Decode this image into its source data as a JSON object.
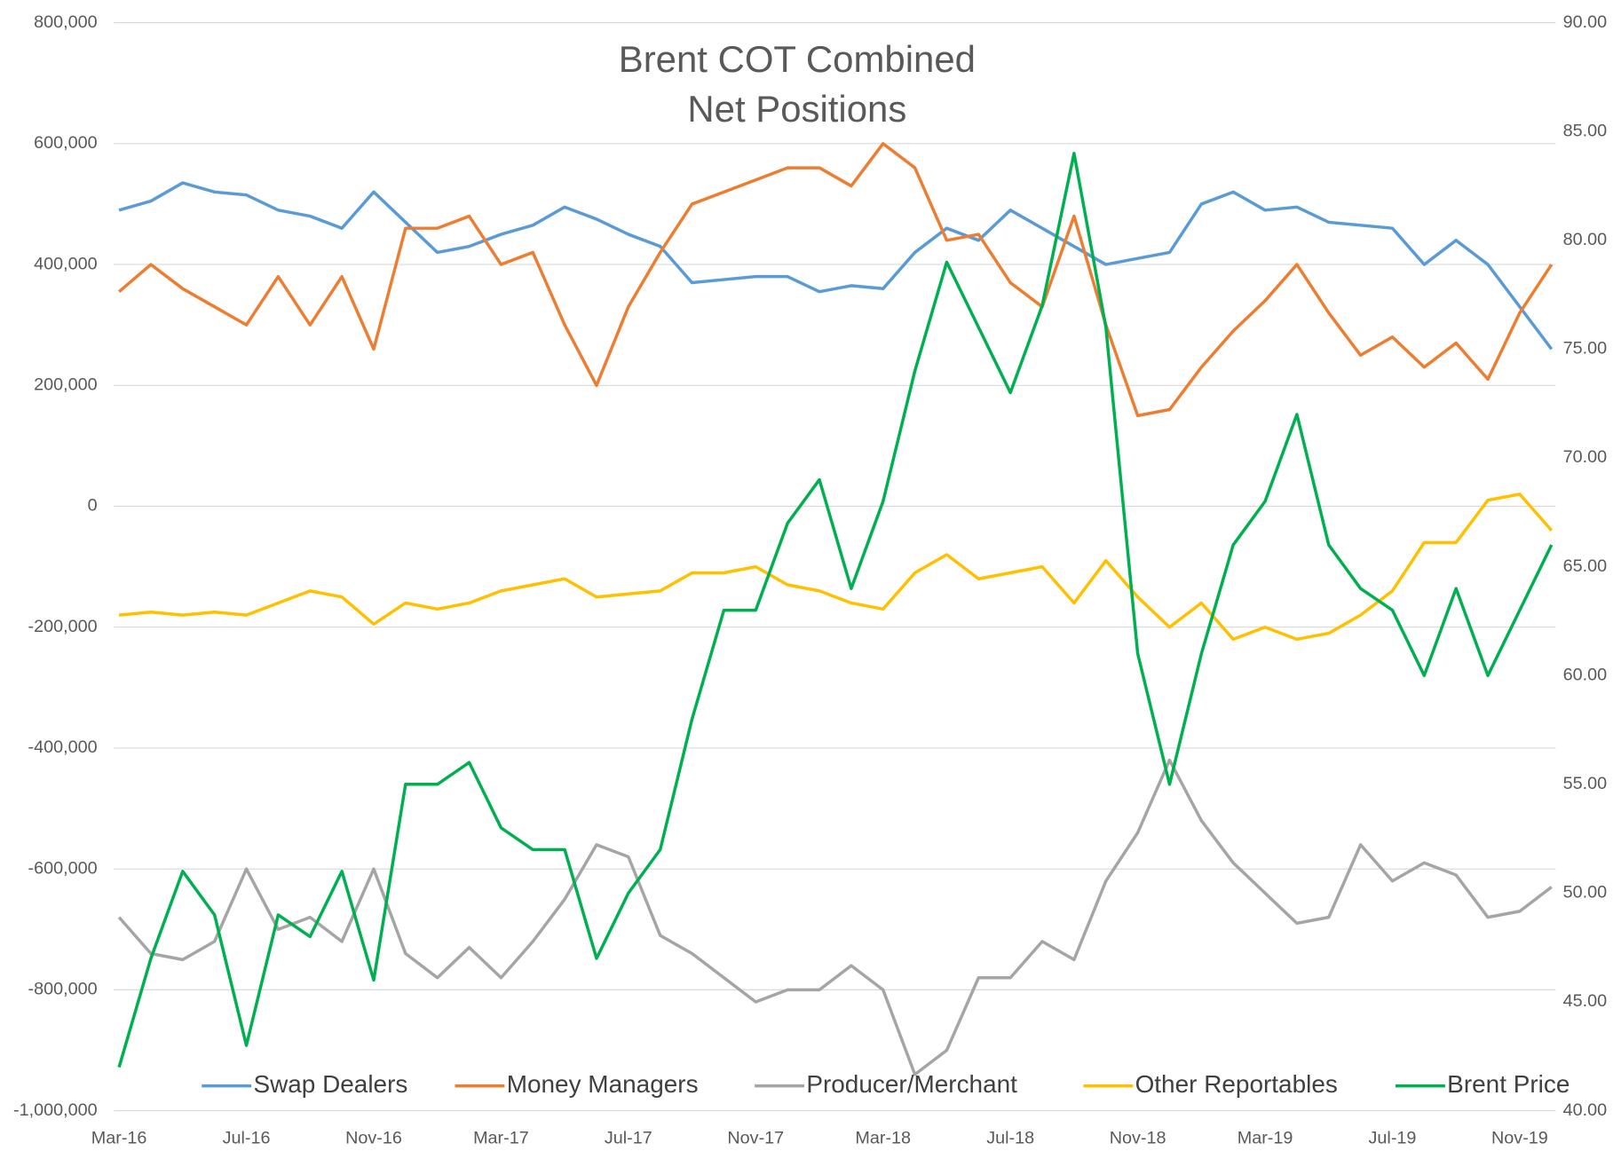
{
  "chart_data": {
    "type": "line",
    "title": [
      "Brent COT Combined",
      "Net Positions"
    ],
    "categories": [
      "Mar-16",
      null,
      null,
      null,
      "Jul-16",
      null,
      null,
      null,
      "Nov-16",
      null,
      null,
      null,
      "Mar-17",
      null,
      null,
      null,
      "Jul-17",
      null,
      null,
      null,
      "Nov-17",
      null,
      null,
      null,
      "Mar-18",
      null,
      null,
      null,
      "Jul-18",
      null,
      null,
      null,
      "Nov-18",
      null,
      null,
      null,
      "Mar-19",
      null,
      null,
      null,
      "Jul-19",
      null,
      null,
      null,
      "Nov-19",
      null
    ],
    "ylim": [
      -1000000,
      800000
    ],
    "yticks": [
      {
        "value": -1000000,
        "label": "-1,000,000"
      },
      {
        "value": -800000,
        "label": "-800,000"
      },
      {
        "value": -600000,
        "label": "-600,000"
      },
      {
        "value": -400000,
        "label": "-400,000"
      },
      {
        "value": -200000,
        "label": "-200,000"
      },
      0,
      {
        "value": 200000,
        "label": "200,000"
      },
      {
        "value": 400000,
        "label": "400,000"
      },
      {
        "value": 600000,
        "label": "600,000"
      },
      {
        "value": 800000,
        "label": "800,000"
      }
    ],
    "y2lim": [
      40,
      90
    ],
    "y2ticks": [
      {
        "value": 40,
        "label": "40.00"
      },
      {
        "value": 45,
        "label": "45.00"
      },
      {
        "value": 50,
        "label": "50.00"
      },
      {
        "value": 55,
        "label": "55.00"
      },
      {
        "value": 60,
        "label": "60.00"
      },
      {
        "value": 65,
        "label": "65.00"
      },
      {
        "value": 70,
        "label": "70.00"
      },
      {
        "value": 75,
        "label": "75.00"
      },
      {
        "value": 80,
        "label": "80.00"
      },
      {
        "value": 85,
        "label": "85.00"
      },
      {
        "value": 90,
        "label": "90.00"
      }
    ],
    "grid": true,
    "legend": "bottom",
    "series": [
      {
        "name": "Swap Dealers",
        "color": "#5b9bd5",
        "values": [
          490000,
          505000,
          535000,
          520000,
          515000,
          490000,
          480000,
          460000,
          520000,
          470000,
          420000,
          430000,
          450000,
          465000,
          495000,
          475000,
          450000,
          430000,
          370000,
          375000,
          380000,
          380000,
          355000,
          365000,
          360000,
          420000,
          460000,
          440000,
          490000,
          460000,
          430000,
          400000,
          410000,
          420000,
          500000,
          520000,
          490000,
          495000,
          470000,
          465000,
          460000,
          400000,
          440000,
          400000,
          330000,
          260000
        ]
      },
      {
        "name": "Money Managers",
        "color": "#ed7d31",
        "values": [
          355000,
          400000,
          360000,
          330000,
          300000,
          380000,
          300000,
          380000,
          260000,
          460000,
          460000,
          480000,
          400000,
          420000,
          300000,
          200000,
          330000,
          420000,
          500000,
          520000,
          540000,
          560000,
          560000,
          530000,
          600000,
          560000,
          440000,
          450000,
          370000,
          330000,
          480000,
          300000,
          150000,
          160000,
          230000,
          290000,
          340000,
          400000,
          320000,
          250000,
          280000,
          230000,
          270000,
          210000,
          320000,
          400000
        ]
      },
      {
        "name": "Producer/Merchant",
        "color": "#a5a5a5",
        "values": [
          -680000,
          -740000,
          -750000,
          -720000,
          -600000,
          -700000,
          -680000,
          -720000,
          -600000,
          -740000,
          -780000,
          -730000,
          -780000,
          -720000,
          -650000,
          -560000,
          -580000,
          -710000,
          -740000,
          -780000,
          -820000,
          -800000,
          -800000,
          -760000,
          -800000,
          -940000,
          -900000,
          -780000,
          -780000,
          -720000,
          -750000,
          -620000,
          -540000,
          -420000,
          -520000,
          -590000,
          -640000,
          -690000,
          -680000,
          -560000,
          -620000,
          -590000,
          -610000,
          -680000,
          -670000,
          -630000
        ]
      },
      {
        "name": "Other Reportables",
        "color": "#ffc000",
        "values": [
          -180000,
          -175000,
          -180000,
          -175000,
          -180000,
          -160000,
          -140000,
          -150000,
          -195000,
          -160000,
          -170000,
          -160000,
          -140000,
          -130000,
          -120000,
          -150000,
          -145000,
          -140000,
          -110000,
          -110000,
          -100000,
          -130000,
          -140000,
          -160000,
          -170000,
          -110000,
          -80000,
          -120000,
          -110000,
          -100000,
          -160000,
          -90000,
          -150000,
          -200000,
          -160000,
          -220000,
          -200000,
          -220000,
          -210000,
          -180000,
          -140000,
          -60000,
          -60000,
          10000,
          20000,
          -40000
        ]
      },
      {
        "name": "Brent Price",
        "color": "#00b050",
        "axis": "y2",
        "values": [
          42,
          47,
          51,
          49,
          43,
          49,
          48,
          51,
          46,
          55,
          55,
          56,
          53,
          52,
          52,
          47,
          50,
          52,
          58,
          63,
          63,
          67,
          69,
          64,
          68,
          74,
          79,
          76,
          73,
          77,
          84,
          76,
          61,
          55,
          61,
          66,
          68,
          72,
          66,
          64,
          63,
          60,
          64,
          60,
          63,
          66
        ]
      }
    ]
  }
}
